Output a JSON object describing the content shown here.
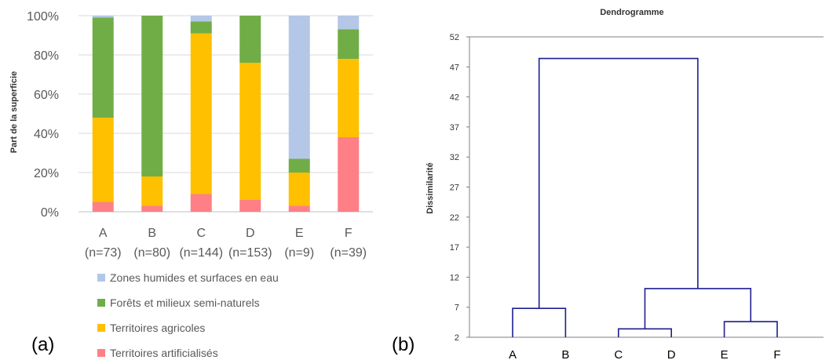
{
  "panel_labels": {
    "a": "(a)",
    "b": "(b)"
  },
  "chart_data": [
    {
      "type": "bar",
      "stacked": true,
      "ylabel": "Part de la superficie",
      "ylim": [
        0,
        100
      ],
      "yticks": [
        "0%",
        "20%",
        "40%",
        "60%",
        "80%",
        "100%"
      ],
      "categories": [
        "A",
        "B",
        "C",
        "D",
        "E",
        "F"
      ],
      "sublabels": [
        "(n=73)",
        "(n=80)",
        "(n=144)",
        "(n=153)",
        "(n=9)",
        "(n=39)"
      ],
      "legend_position": "bottom",
      "series": [
        {
          "name": "Territoires artificialisés",
          "color": "#FF7F86",
          "values": [
            5,
            3,
            9,
            6,
            3,
            38
          ]
        },
        {
          "name": "Territoires agricoles",
          "color": "#FFC000",
          "values": [
            43,
            15,
            82,
            70,
            17,
            40
          ]
        },
        {
          "name": "Forêts et milieux semi-naturels",
          "color": "#70AD47",
          "values": [
            51,
            82,
            6,
            24,
            7,
            15
          ]
        },
        {
          "name": "Zones humides et surfaces en eau",
          "color": "#B4C7E7",
          "values": [
            1,
            0,
            3,
            0,
            73,
            7
          ]
        }
      ],
      "legend_order": [
        3,
        2,
        1,
        0
      ]
    },
    {
      "type": "dendrogram",
      "title": "Dendrogramme",
      "ylabel": "Dissimilarité",
      "ylim": [
        2,
        52
      ],
      "yticks": [
        2,
        7,
        12,
        17,
        22,
        27,
        32,
        37,
        42,
        47,
        52
      ],
      "leaves": [
        "A",
        "B",
        "C",
        "D",
        "E",
        "F"
      ],
      "color": "#1F1F8F",
      "merges": [
        {
          "left": "C",
          "right": "D",
          "height": 3.4
        },
        {
          "left": "E",
          "right": "F",
          "height": 4.6
        },
        {
          "left": "A",
          "right": "B",
          "height": 6.8
        },
        {
          "left": "CD",
          "right": "EF",
          "height": 10.1
        },
        {
          "left": "AB",
          "right": "CDEF",
          "height": 48.4
        }
      ]
    }
  ]
}
